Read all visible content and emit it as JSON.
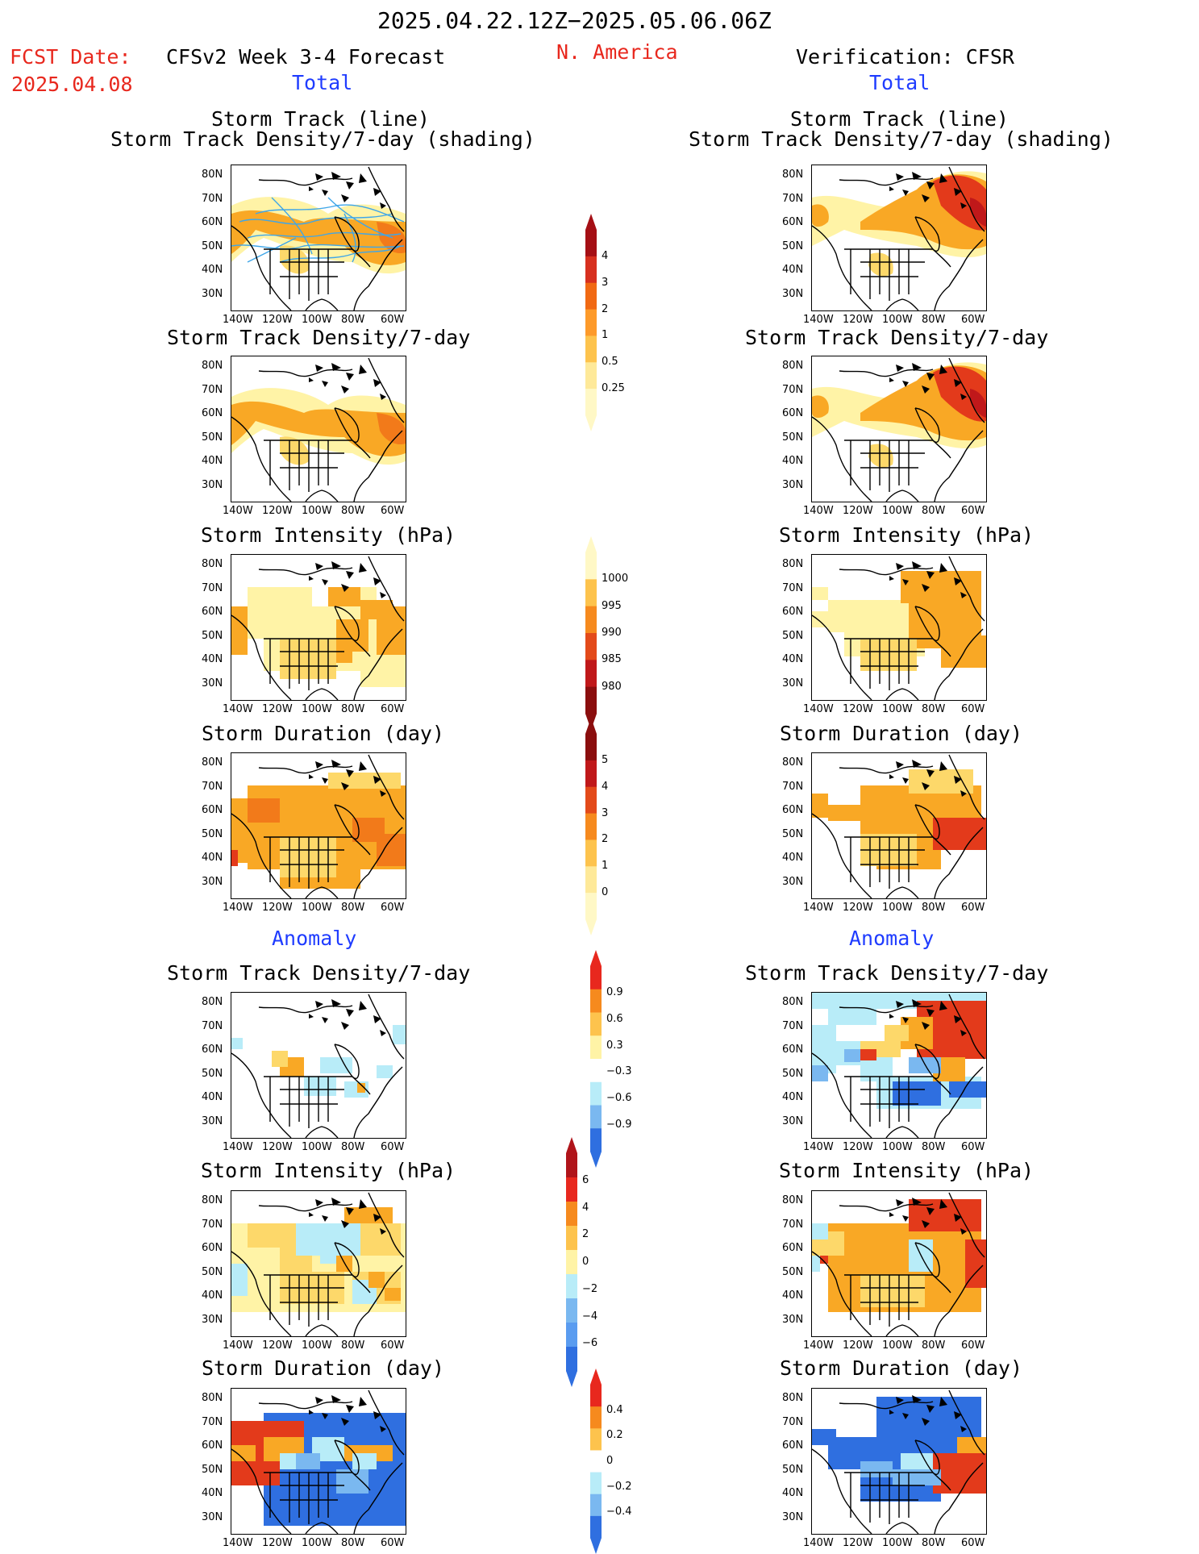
{
  "header": {
    "date_range": "2025.04.22.12Z−2025.05.06.06Z",
    "fcst_label": "FCST Date:",
    "fcst_date": "2025.04.08",
    "left_title": "CFSv2 Week 3-4 Forecast",
    "region": "N. America",
    "right_title": "Verification: CFSR"
  },
  "sections": {
    "total": "Total",
    "anomaly": "Anomaly"
  },
  "panel_titles": {
    "storm_track_line": "Storm Track (line)",
    "storm_track_shading": "Storm Track Density/7-day (shading)",
    "density": "Storm Track Density/7-day",
    "intensity": "Storm Intensity (hPa)",
    "duration": "Storm Duration (day)"
  },
  "axes": {
    "lat_labels": [
      "80N",
      "70N",
      "60N",
      "50N",
      "40N",
      "30N"
    ],
    "lon_labels": [
      "140W",
      "120W",
      "100W",
      "80W",
      "60W"
    ]
  },
  "colorbars": {
    "density_total": {
      "labels": [
        "4",
        "3",
        "2",
        "1",
        "0.5",
        "0.25"
      ],
      "colors": [
        "#a50f15",
        "#d7301f",
        "#f16913",
        "#fd9a2a",
        "#fdc34d",
        "#fee999",
        "#fff8c6"
      ]
    },
    "intensity_total": {
      "labels": [
        "1000",
        "995",
        "990",
        "985",
        "980"
      ],
      "colors": [
        "#fff8c6",
        "#fdc34d",
        "#f68a1e",
        "#e34a1a",
        "#c0181a",
        "#8b0e0e"
      ]
    },
    "duration_total": {
      "labels": [
        "5",
        "4",
        "3",
        "2",
        "1",
        "0"
      ],
      "colors": [
        "#8b0e0e",
        "#c0181a",
        "#e34a1a",
        "#f68a1e",
        "#fdc34d",
        "#fee999",
        "#fff8c6"
      ]
    },
    "density_anom": {
      "labels": [
        "0.9",
        "0.6",
        "0.3",
        "−0.3",
        "−0.6",
        "−0.9"
      ],
      "colors": [
        "#e8281e",
        "#f68a1e",
        "#fdc34d",
        "#fff3a6",
        "#ffffff",
        "#b8ecf8",
        "#7ab8f0",
        "#2f6fe0"
      ]
    },
    "intensity_anom": {
      "labels": [
        "6",
        "4",
        "2",
        "0",
        "−2",
        "−4",
        "−6"
      ],
      "colors": [
        "#b0141a",
        "#e8281e",
        "#f68a1e",
        "#fdc34d",
        "#fff3a6",
        "#b8ecf8",
        "#7ab8f0",
        "#5a9cf0",
        "#2f6fe0"
      ]
    },
    "duration_anom": {
      "labels": [
        "0.4",
        "0.2",
        "0",
        "−0.2",
        "−0.4"
      ],
      "colors": [
        "#e8281e",
        "#f68a1e",
        "#fdc34d",
        "#ffffff",
        "#b8ecf8",
        "#7ab8f0",
        "#2f6fe0"
      ]
    }
  },
  "palette": {
    "pale": "#fff3a6",
    "yellow": "#fdd86a",
    "orange": "#f9a825",
    "dorange": "#f27a1a",
    "red": "#e33a1b",
    "dred": "#c0181a",
    "cyan": "#b8ecf8",
    "lblue": "#7ab8f0",
    "blue": "#2f6fe0",
    "track": "#3fa6e8"
  }
}
